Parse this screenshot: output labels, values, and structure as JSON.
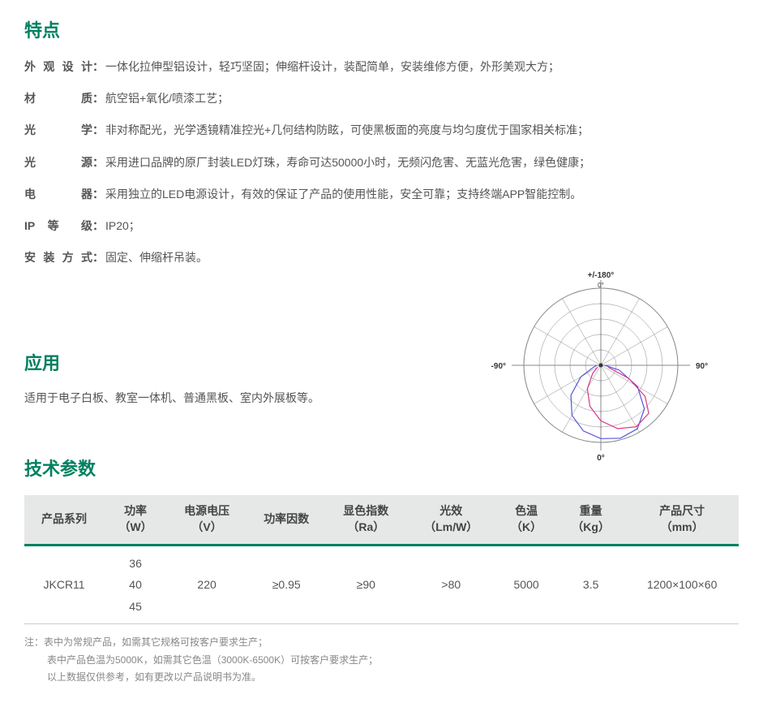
{
  "sections": {
    "features": {
      "title": "特点",
      "items": [
        {
          "label": "外观设计",
          "value": "一体化拉伸型铝设计，轻巧坚固；伸缩杆设计，装配简单，安装维修方便，外形美观大方；"
        },
        {
          "label": "材　　质",
          "value": "航空铝+氧化/喷漆工艺；"
        },
        {
          "label": "光　　学",
          "value": "非对称配光，光学透镜精准控光+几何结构防眩，可使黑板面的亮度与均匀度优于国家相关标准；"
        },
        {
          "label": "光　　源",
          "value": "采用进口品牌的原厂封装LED灯珠，寿命可达50000小时，无频闪危害、无蓝光危害，绿色健康；"
        },
        {
          "label": "电　　器",
          "value": "采用独立的LED电源设计，有效的保证了产品的使用性能，安全可靠；支持终端APP智能控制。"
        },
        {
          "label": "IP 等 级",
          "value": "IP20；"
        },
        {
          "label": "安装方式",
          "value": "固定、伸缩杆吊装。"
        }
      ]
    },
    "application": {
      "title": "应用",
      "text": "适用于电子白板、教室一体机、普通黑板、室内外展板等。"
    },
    "techParams": {
      "title": "技术参数",
      "columns": [
        {
          "line1": "产品系列",
          "line2": ""
        },
        {
          "line1": "功率",
          "line2": "（W）"
        },
        {
          "line1": "电源电压",
          "line2": "（V）"
        },
        {
          "line1": "功率因数",
          "line2": ""
        },
        {
          "line1": "显色指数",
          "line2": "（Ra）"
        },
        {
          "line1": "光效",
          "line2": "（Lm/W）"
        },
        {
          "line1": "色温",
          "line2": "（K）"
        },
        {
          "line1": "重量",
          "line2": "（Kg）"
        },
        {
          "line1": "产品尺寸",
          "line2": "（mm）"
        }
      ],
      "row": {
        "series": "JKCR11",
        "power": [
          "36",
          "40",
          "45"
        ],
        "voltage": "220",
        "powerFactor": "≥0.95",
        "cri": "≥90",
        "efficacy": ">80",
        "colorTemp": "5000",
        "weight": "3.5",
        "dimensions": "1200×100×60"
      }
    },
    "footnote": {
      "prefix": "注：",
      "lines": [
        "表中为常规产品，如需其它规格可按客户要求生产；",
        "表中产品色温为5000K，如需其它色温（3000K-6500K）可按客户要求生产；",
        "以上数据仅供参考，如有更改以产品说明书为准。"
      ]
    }
  },
  "polarChart": {
    "type": "polar-light-distribution",
    "background_color": "#ffffff",
    "grid_color": "#888888",
    "axis_labels": {
      "top": "+/-180°",
      "top_inner": "0°",
      "left": "-90°",
      "right": "90°",
      "bottom": "0°"
    },
    "label_fontsize": 10,
    "label_color": "#333333",
    "radial_rings": 5,
    "angular_lines": 12,
    "curves": [
      {
        "color": "#5555dd",
        "stroke_width": 1.2,
        "points_deg_r": [
          [
            -90,
            0.05
          ],
          [
            -75,
            0.1
          ],
          [
            -60,
            0.3
          ],
          [
            -45,
            0.55
          ],
          [
            -30,
            0.75
          ],
          [
            -15,
            0.88
          ],
          [
            0,
            0.95
          ],
          [
            15,
            0.98
          ],
          [
            30,
            0.95
          ],
          [
            45,
            0.8
          ],
          [
            60,
            0.55
          ],
          [
            75,
            0.25
          ],
          [
            90,
            0.05
          ]
        ]
      },
      {
        "color": "#dd3388",
        "stroke_width": 1.2,
        "points_deg_r": [
          [
            -60,
            0.05
          ],
          [
            -45,
            0.15
          ],
          [
            -30,
            0.35
          ],
          [
            -15,
            0.55
          ],
          [
            0,
            0.72
          ],
          [
            15,
            0.85
          ],
          [
            30,
            0.92
          ],
          [
            45,
            0.88
          ],
          [
            55,
            0.7
          ],
          [
            65,
            0.4
          ],
          [
            75,
            0.1
          ]
        ]
      }
    ]
  },
  "colors": {
    "accent": "#008060",
    "text": "#555555",
    "header_bg": "#e6e8e8",
    "footnote": "#888888"
  }
}
